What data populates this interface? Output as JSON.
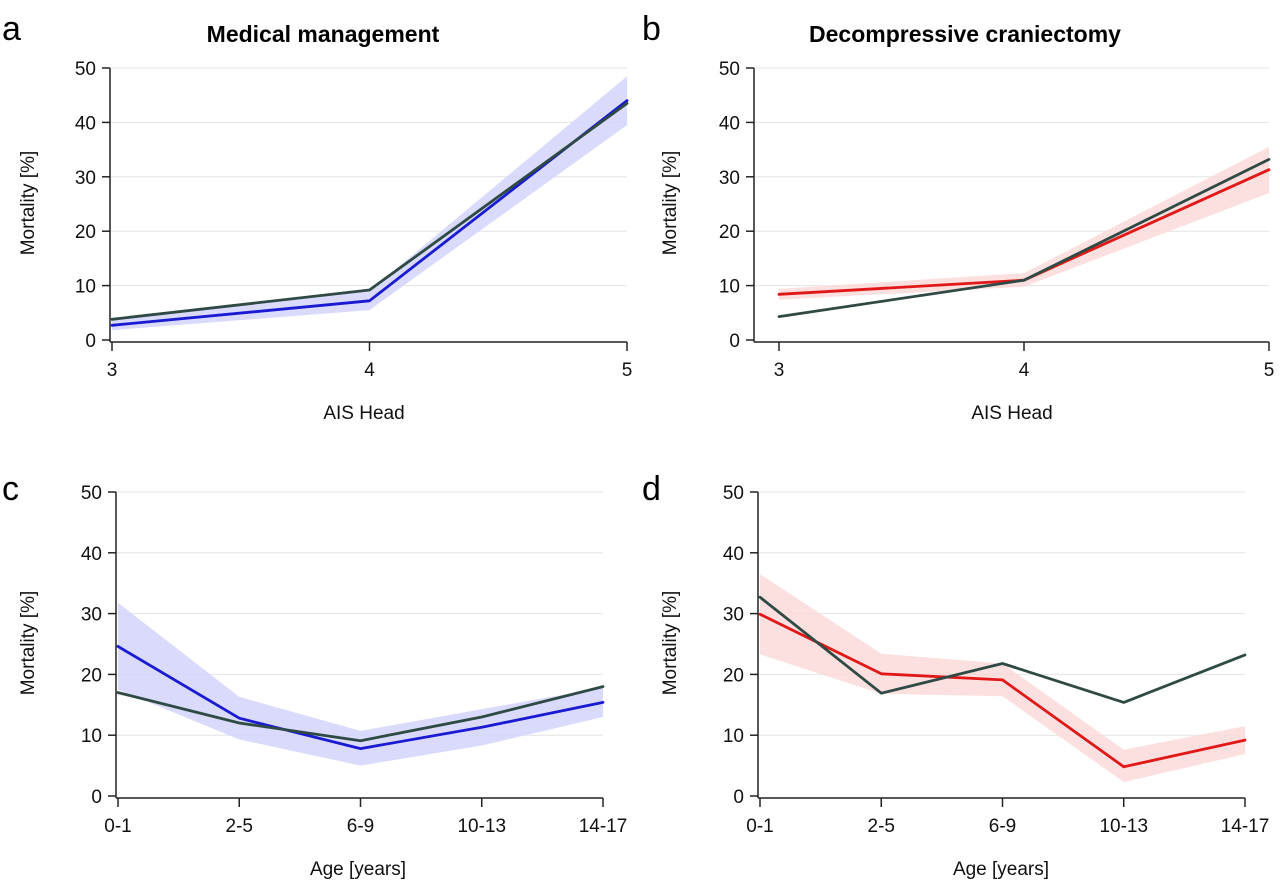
{
  "chart_data": [
    {
      "panel": "a",
      "type": "line",
      "title": "Medical management",
      "xlabel": "AIS Head",
      "ylabel": "Mortality [%]",
      "categories": [
        "3",
        "4",
        "5"
      ],
      "ylim": [
        0,
        50
      ],
      "yticks": [
        "0",
        "10",
        "20",
        "30",
        "40",
        "50"
      ],
      "grid": "horizontal",
      "series": [
        {
          "color": "#1a1ad2",
          "band_color": "#d3d3fb",
          "values": [
            2.7,
            7.2,
            44.0
          ],
          "lower": [
            1.8,
            5.5,
            39.5
          ],
          "upper": [
            3.6,
            9.0,
            48.5
          ]
        },
        {
          "color": "#2f4a44",
          "values": [
            3.8,
            9.2,
            43.5
          ]
        }
      ]
    },
    {
      "panel": "b",
      "type": "line",
      "title": "Decompressive craniectomy",
      "xlabel": "AIS Head",
      "ylabel": "Mortality [%]",
      "categories": [
        "3",
        "4",
        "5"
      ],
      "ylim": [
        0,
        50
      ],
      "yticks": [
        "0",
        "10",
        "20",
        "30",
        "40",
        "50"
      ],
      "grid": "horizontal",
      "series": [
        {
          "color": "#e01818",
          "band_color": "#fcd9d9",
          "values": [
            8.4,
            11.0,
            31.3
          ],
          "lower": [
            7.4,
            9.8,
            27.0
          ],
          "upper": [
            9.4,
            12.3,
            35.5
          ]
        },
        {
          "color": "#2f4a44",
          "values": [
            4.3,
            11.0,
            33.2
          ]
        }
      ]
    },
    {
      "panel": "c",
      "type": "line",
      "title": "",
      "xlabel": "Age [years]",
      "ylabel": "Mortality [%]",
      "categories": [
        "0-1",
        "2-5",
        "6-9",
        "10-13",
        "14-17"
      ],
      "ylim": [
        0,
        50
      ],
      "yticks": [
        "0",
        "10",
        "20",
        "30",
        "40",
        "50"
      ],
      "grid": "horizontal",
      "series": [
        {
          "color": "#1a1ad2",
          "band_color": "#d3d3fb",
          "values": [
            24.6,
            12.8,
            7.8,
            11.3,
            15.4
          ],
          "lower": [
            17.5,
            9.3,
            5.0,
            8.3,
            13.0
          ],
          "upper": [
            31.8,
            16.3,
            10.7,
            14.3,
            17.8
          ]
        },
        {
          "color": "#2f4a44",
          "values": [
            17.0,
            12.0,
            9.1,
            13.0,
            18.0
          ]
        }
      ]
    },
    {
      "panel": "d",
      "type": "line",
      "title": "",
      "xlabel": "Age [years]",
      "ylabel": "Mortality [%]",
      "categories": [
        "0-1",
        "2-5",
        "6-9",
        "10-13",
        "14-17"
      ],
      "ylim": [
        0,
        50
      ],
      "yticks": [
        "0",
        "10",
        "20",
        "30",
        "40",
        "50"
      ],
      "grid": "horizontal",
      "series": [
        {
          "color": "#e01818",
          "band_color": "#fcd9d9",
          "values": [
            29.9,
            20.1,
            19.1,
            4.8,
            9.2
          ],
          "lower": [
            23.3,
            16.8,
            16.4,
            2.3,
            6.9
          ],
          "upper": [
            36.5,
            23.4,
            21.8,
            7.6,
            11.5
          ]
        },
        {
          "color": "#2f4a44",
          "values": [
            32.7,
            16.9,
            21.8,
            15.4,
            23.2
          ]
        }
      ]
    }
  ]
}
